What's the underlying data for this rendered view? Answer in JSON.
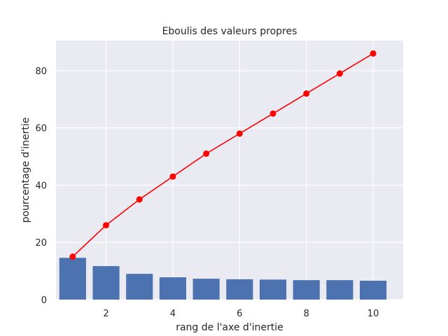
{
  "chart_data": {
    "type": "bar",
    "title": "Eboulis des valeurs propres",
    "xlabel": "rang de l'axe d'inertie",
    "ylabel": "pourcentage d'inertie",
    "xlim": [
      0.5,
      10.9
    ],
    "ylim": [
      0,
      90.5
    ],
    "xticks": [
      2,
      4,
      6,
      8,
      10
    ],
    "yticks": [
      0,
      20,
      40,
      60,
      80
    ],
    "grid": true,
    "legend": "none",
    "x": [
      1,
      2,
      3,
      4,
      5,
      6,
      7,
      8,
      9,
      10
    ],
    "series": [
      {
        "type": "bar",
        "color": "#4c72b0",
        "values": [
          14.6,
          11.7,
          9.0,
          7.8,
          7.3,
          7.1,
          7.0,
          6.8,
          6.8,
          6.6
        ]
      },
      {
        "type": "line",
        "color": "#ff0000",
        "marker": "circle",
        "values": [
          15.0,
          26.0,
          35.0,
          43.0,
          51.0,
          58.0,
          65.0,
          72.0,
          79.0,
          86.0
        ]
      }
    ]
  }
}
